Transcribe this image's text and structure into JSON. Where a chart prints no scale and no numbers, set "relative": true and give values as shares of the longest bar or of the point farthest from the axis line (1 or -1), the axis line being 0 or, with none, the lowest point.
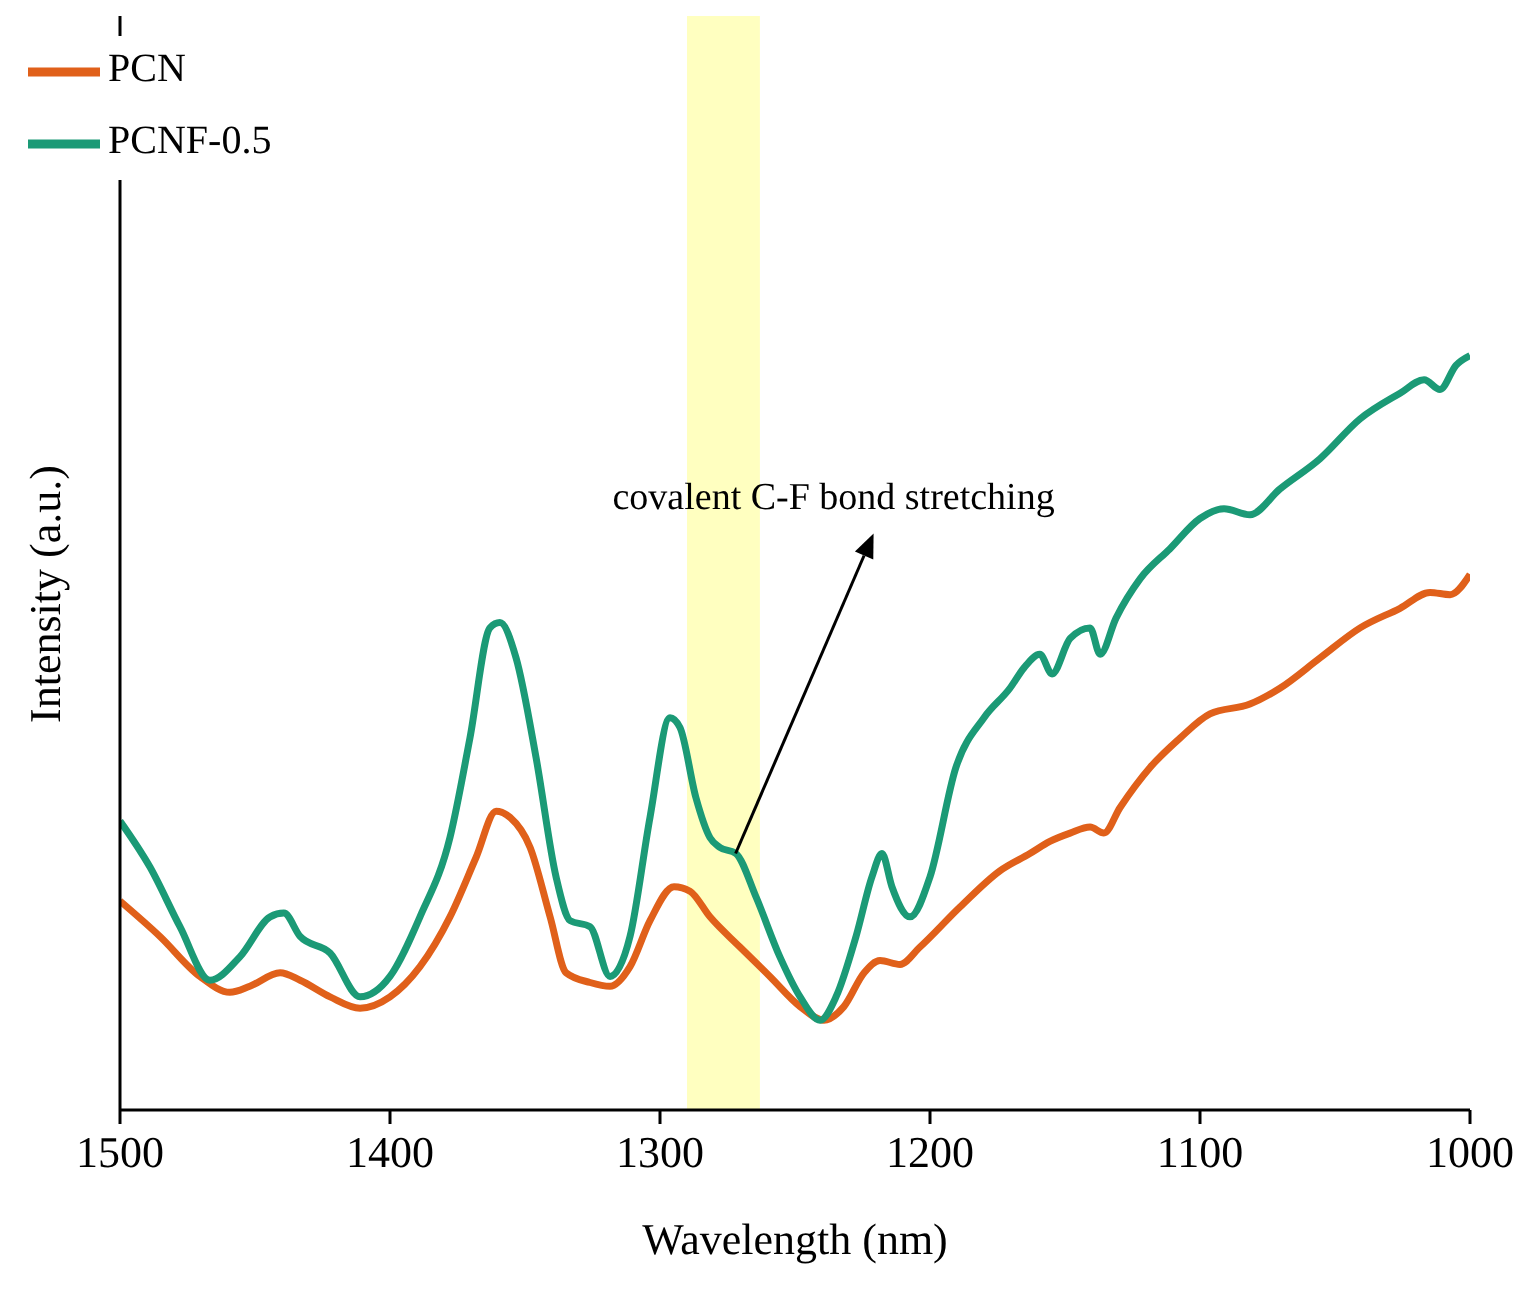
{
  "chart_data": {
    "type": "line",
    "xlabel": "Wavelength (nm)",
    "ylabel": "Intensity (a.u.)",
    "relative": true,
    "xlim": [
      1500,
      1000
    ],
    "xticks": [
      1500,
      1400,
      1300,
      1200,
      1100,
      1000
    ],
    "legend": "top left",
    "grid": false,
    "marker": "none",
    "line_style": "solid",
    "bands": [
      {
        "axis": "x",
        "from": 1290,
        "to": 1263,
        "color": "#ffffc0"
      }
    ],
    "annotations": [
      {
        "text": "covalent C-F bond stretching",
        "x": 1272,
        "y": 0.34
      }
    ],
    "series": [
      {
        "name": "PCN",
        "color": "#e0601a",
        "x": [
          1500,
          1485.2,
          1470.4,
          1459.3,
          1451.9,
          1440.7,
          1433.3,
          1422.2,
          1411.1,
          1400,
          1388.9,
          1377.8,
          1368.1,
          1360.7,
          1355.6,
          1348.1,
          1340.7,
          1334.8,
          1325.9,
          1318.5,
          1311.1,
          1303.7,
          1294.8,
          1288.9,
          1281.5,
          1270.4,
          1259.3,
          1248.1,
          1239.3,
          1231.9,
          1224.4,
          1218.5,
          1211.1,
          1203.7,
          1188.9,
          1174.1,
          1163,
          1155.6,
          1148.1,
          1140.7,
          1135.6,
          1129.6,
          1118.5,
          1107.4,
          1096.3,
          1081.5,
          1070.4,
          1055.6,
          1040.7,
          1025.9,
          1014.8,
          1007.4,
          1000
        ],
        "values": [
          0.277,
          0.23,
          0.177,
          0.156,
          0.164,
          0.182,
          0.172,
          0.15,
          0.135,
          0.15,
          0.19,
          0.256,
          0.335,
          0.396,
          0.388,
          0.348,
          0.256,
          0.182,
          0.169,
          0.164,
          0.19,
          0.251,
          0.296,
          0.29,
          0.256,
          0.216,
          0.177,
          0.137,
          0.119,
          0.137,
          0.182,
          0.198,
          0.193,
          0.216,
          0.269,
          0.317,
          0.34,
          0.356,
          0.367,
          0.375,
          0.367,
          0.401,
          0.454,
          0.493,
          0.525,
          0.538,
          0.559,
          0.599,
          0.639,
          0.665,
          0.686,
          0.683,
          0.71
        ]
      },
      {
        "name": "PCNF-0.5",
        "color": "#1b9a76",
        "x": [
          1500,
          1488.9,
          1477.8,
          1466.7,
          1455.6,
          1444.4,
          1439.3,
          1433.3,
          1422.2,
          1411.1,
          1400,
          1388.9,
          1377.8,
          1370.4,
          1363,
          1359.3,
          1353.3,
          1345.9,
          1338.5,
          1333.3,
          1325.9,
          1318.5,
          1311.1,
          1303.7,
          1296.3,
          1292.6,
          1286.7,
          1281.5,
          1277.8,
          1271.9,
          1264.4,
          1255.6,
          1248.1,
          1240.7,
          1234.8,
          1227.4,
          1221.5,
          1217.8,
          1214.1,
          1207.4,
          1200,
          1190.4,
          1180,
          1170.4,
          1165.2,
          1159.3,
          1154.8,
          1148.1,
          1140.7,
          1137,
          1131.1,
          1122.2,
          1111.1,
          1100,
          1091.1,
          1081.5,
          1070.4,
          1055.6,
          1040.7,
          1025.9,
          1017,
          1011.1,
          1005.2,
          1000
        ],
        "values": [
          0.383,
          0.322,
          0.243,
          0.172,
          0.203,
          0.256,
          0.261,
          0.23,
          0.208,
          0.15,
          0.177,
          0.256,
          0.361,
          0.493,
          0.639,
          0.646,
          0.599,
          0.467,
          0.309,
          0.251,
          0.243,
          0.177,
          0.23,
          0.388,
          0.52,
          0.507,
          0.414,
          0.361,
          0.348,
          0.34,
          0.282,
          0.203,
          0.15,
          0.119,
          0.15,
          0.23,
          0.309,
          0.34,
          0.296,
          0.256,
          0.309,
          0.454,
          0.52,
          0.559,
          0.586,
          0.604,
          0.578,
          0.625,
          0.639,
          0.604,
          0.652,
          0.704,
          0.744,
          0.784,
          0.797,
          0.789,
          0.823,
          0.863,
          0.916,
          0.95,
          0.968,
          0.955,
          0.987,
          1
        ]
      }
    ]
  }
}
